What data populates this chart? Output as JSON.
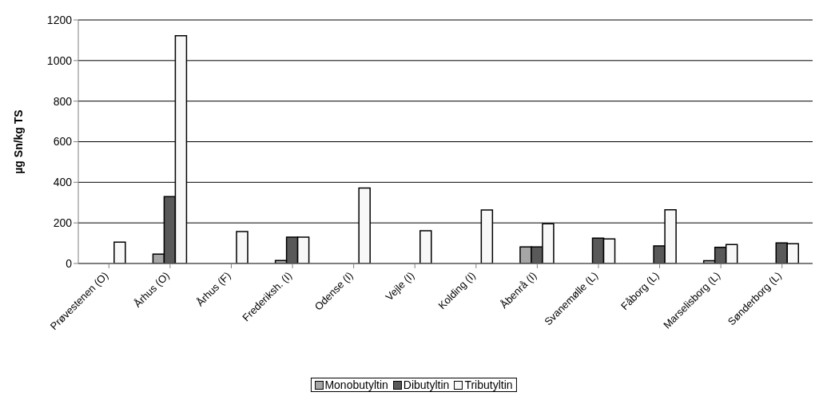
{
  "chart_data": {
    "type": "bar",
    "ylabel": "µg Sn/kg TS",
    "categories": [
      "Prøvestenen (O)",
      "Århus (O)",
      "Århus (F)",
      "Frederiksh. (I)",
      "Odense (I)",
      "Vejle (I)",
      "Kolding (I)",
      "Åbenrå (I)",
      "Svanemølle (L)",
      "Fåborg (L)",
      "Marselisborg (L)",
      "Sønderborg (L)"
    ],
    "series": [
      {
        "name": "Monobutyltin",
        "color": "#a6a6a6",
        "values": [
          null,
          46,
          null,
          15,
          null,
          null,
          null,
          82,
          null,
          null,
          14,
          null
        ]
      },
      {
        "name": "Dibutyltin",
        "color": "#595959",
        "values": [
          null,
          330,
          null,
          130,
          null,
          null,
          null,
          82,
          125,
          87,
          80,
          101
        ]
      },
      {
        "name": "Tributyltin",
        "color": "#f8f8f8",
        "values": [
          105,
          1122,
          157,
          130,
          372,
          161,
          264,
          196,
          121,
          265,
          93,
          97
        ]
      }
    ],
    "ylim": [
      0,
      1200
    ],
    "yticks": [
      0,
      200,
      400,
      600,
      800,
      1000,
      1200
    ],
    "grid": "y",
    "legend": "bottom"
  }
}
